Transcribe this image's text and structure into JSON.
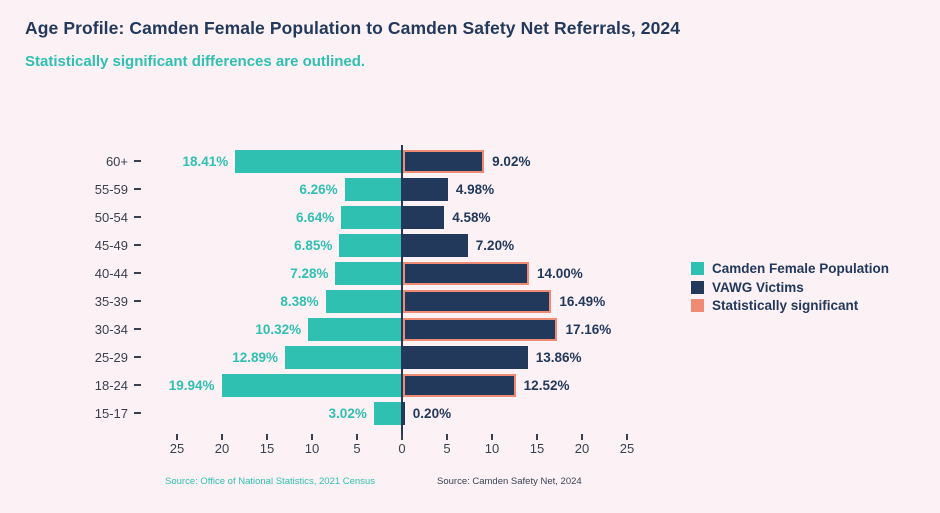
{
  "page": {
    "title": "Age Profile: Camden Female Population to Camden Safety Net Referrals, 2024",
    "subtitle": "Statistically significant differences are outlined."
  },
  "colors": {
    "background": "#fcf1f4",
    "teal": "#2fc0b2",
    "navy": "#22395c",
    "salmon": "#ef8a74",
    "tick_text": "#39404d"
  },
  "chart_data": {
    "type": "bar",
    "orientation": "diverging-horizontal",
    "title": "Age Profile: Camden Female Population to Camden Safety Net Referrals, 2024",
    "subtitle": "Statistically significant differences are outlined.",
    "categories": [
      "60+",
      "55-59",
      "50-54",
      "45-49",
      "40-44",
      "35-39",
      "30-34",
      "25-29",
      "18-24",
      "15-17"
    ],
    "series": [
      {
        "name": "Camden Female Population",
        "side": "left",
        "color": "#2fc0b2",
        "values": [
          18.41,
          6.26,
          6.64,
          6.85,
          7.28,
          8.38,
          10.32,
          12.89,
          19.94,
          3.02
        ]
      },
      {
        "name": "VAWG Victims",
        "side": "right",
        "color": "#22395c",
        "values": [
          9.02,
          4.98,
          4.58,
          7.2,
          14.0,
          16.49,
          17.16,
          13.86,
          12.52,
          0.2
        ]
      }
    ],
    "labels_left": [
      "18.41%",
      "6.26%",
      "6.64%",
      "6.85%",
      "7.28%",
      "8.38%",
      "10.32%",
      "12.89%",
      "19.94%",
      "3.02%"
    ],
    "labels_right": [
      "9.02%",
      "4.98%",
      "4.58%",
      "7.20%",
      "14.00%",
      "16.49%",
      "17.16%",
      "13.86%",
      "12.52%",
      "0.20%"
    ],
    "significant_right": [
      true,
      false,
      false,
      false,
      true,
      true,
      true,
      false,
      true,
      false
    ],
    "x_ticks": [
      "25",
      "20",
      "15",
      "10",
      "5",
      "0",
      "5",
      "10",
      "15",
      "20",
      "25"
    ],
    "x_axis_max_each_side": 25,
    "grid": false,
    "legend_position": "right",
    "legend": [
      {
        "label": "Camden Female Population",
        "color": "#2fc0b2"
      },
      {
        "label": "VAWG Victims",
        "color": "#22395c"
      },
      {
        "label": "Statistically significant",
        "color": "#ef8a74"
      }
    ],
    "sources": {
      "left": "Source: Office of National Statistics, 2021 Census",
      "right": "Source: Camden Safety Net, 2024"
    }
  }
}
